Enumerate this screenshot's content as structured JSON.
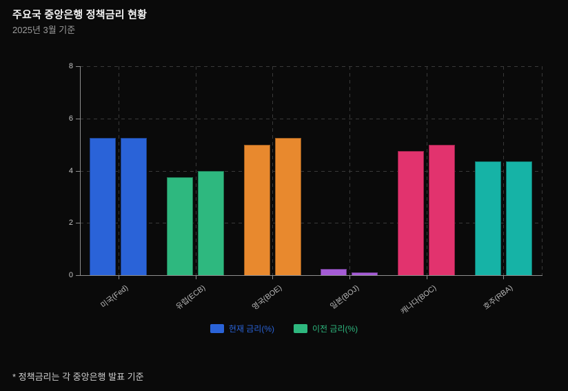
{
  "header": {
    "title": "주요국 중앙은행 정책금리 현황",
    "subtitle": "2025년 3월 기준"
  },
  "footnote": "* 정책금리는 각 중앙은행 발표 기준",
  "colors": {
    "background": "#0a0a0a",
    "title": "#f2f2f2",
    "subtitle": "#9b9b9b",
    "axis": "#8f8f8f",
    "tick_label": "#c4c4c4",
    "grid": "#3a3a3a",
    "footnote": "#cfcfcf"
  },
  "chart_data": {
    "type": "bar",
    "title": "주요국 중앙은행 정책금리 현황",
    "subtitle": "2025년 3월 기준",
    "categories": [
      "미국(Fed)",
      "유럽(ECB)",
      "영국(BOE)",
      "일본(BOJ)",
      "캐나다(BOC)",
      "호주(RBA)"
    ],
    "series": [
      {
        "name": "현재 금리(%)",
        "color": "#2a63d8",
        "values": [
          5.25,
          3.75,
          5.0,
          0.25,
          4.75,
          4.35
        ]
      },
      {
        "name": "이전 금리(%)",
        "color": "#2eb87f",
        "values": [
          5.25,
          4.0,
          5.25,
          0.1,
          5.0,
          4.35
        ]
      }
    ],
    "bar_color_mode": "per-category",
    "category_colors": [
      "#2a63d8",
      "#2eb87f",
      "#e8892e",
      "#a55cd6",
      "#e2336e",
      "#16b3a6"
    ],
    "xlabel": "",
    "ylabel": "",
    "ylim": [
      0,
      8
    ],
    "yticks": [
      0,
      2,
      4,
      6,
      8
    ],
    "grid": "dashed-both-axes",
    "legend_position": "bottom"
  }
}
